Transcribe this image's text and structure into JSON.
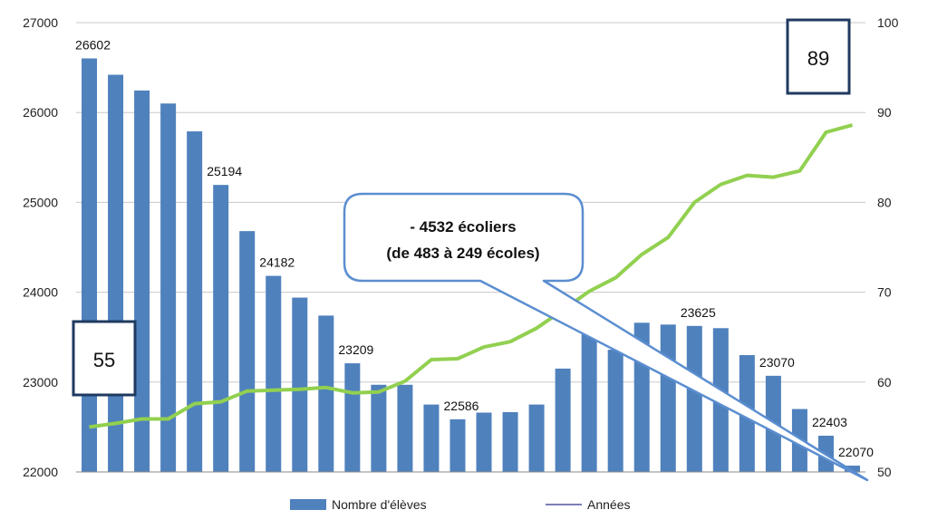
{
  "chart_data": {
    "type": "bar",
    "y_left": {
      "ylim": [
        22000,
        27000
      ],
      "ticks": [
        22000,
        23000,
        24000,
        25000,
        26000,
        27000
      ]
    },
    "y_right": {
      "ylim": [
        50,
        100
      ],
      "ticks": [
        50,
        60,
        70,
        80,
        90,
        100
      ]
    },
    "grid": true,
    "series": [
      {
        "name": "Nombre d'élèves",
        "kind": "bar",
        "axis": "left",
        "color": "#4F81BD",
        "values": [
          26602,
          26420,
          26245,
          26100,
          25790,
          25194,
          24680,
          24182,
          23940,
          23740,
          23209,
          22970,
          22970,
          22750,
          22586,
          22660,
          22665,
          22750,
          23150,
          23530,
          23360,
          23660,
          23640,
          23625,
          23600,
          23300,
          23070,
          22700,
          22403,
          22070
        ],
        "data_labels": {
          "0": "26602",
          "5": "25194",
          "7": "24182",
          "10": "23209",
          "14": "22586",
          "23": "23625",
          "26": "23070",
          "28": "22403",
          "29": "22070"
        }
      },
      {
        "name": "Années",
        "kind": "line",
        "axis": "right",
        "color": "#92D050",
        "legend_color": "#7B7FB8",
        "values": [
          55,
          55.4,
          55.9,
          55.9,
          57.6,
          57.8,
          59,
          59.1,
          59.2,
          59.4,
          58.8,
          58.9,
          60.1,
          62.5,
          62.6,
          63.9,
          64.5,
          66,
          68,
          70.1,
          71.6,
          74.2,
          76.1,
          80,
          82,
          83,
          82.8,
          83.5,
          87.8,
          88.6
        ]
      }
    ],
    "annotations": {
      "start_box": "55",
      "end_box": "89",
      "callout_line1": "- 4532 écoliers",
      "callout_line2": "(de 483 à 249 écoles)"
    },
    "legend_position": "bottom"
  }
}
